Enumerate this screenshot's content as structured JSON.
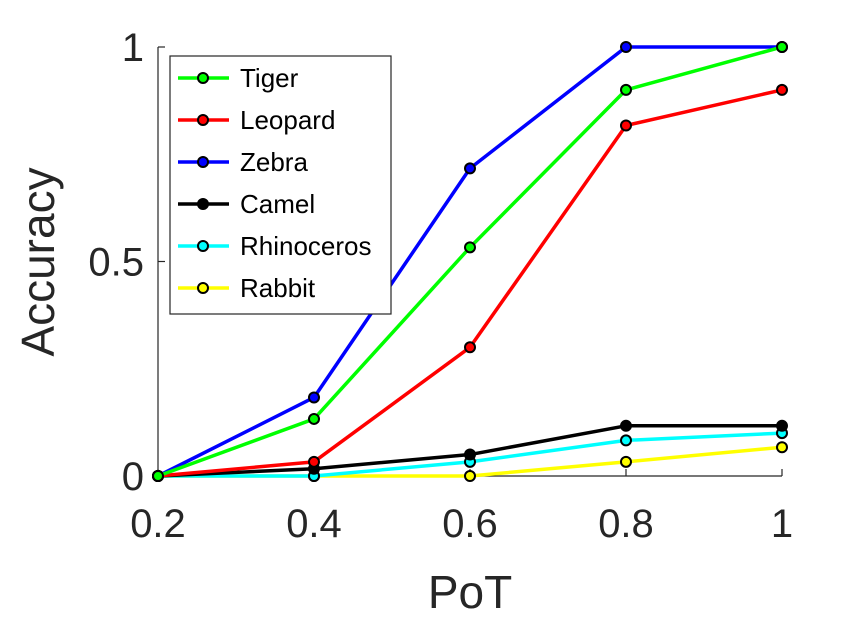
{
  "chart_data": {
    "type": "line",
    "title": "",
    "xlabel": "PoT",
    "ylabel": "Accuracy",
    "x": [
      0.2,
      0.4,
      0.6,
      0.8,
      1
    ],
    "x_tick_labels": [
      "0.2",
      "0.4",
      "0.6",
      "0.8",
      "1"
    ],
    "y_ticks": [
      0,
      0.5,
      1
    ],
    "y_tick_labels": [
      "0",
      "0.5",
      "1"
    ],
    "xlim": [
      0.2,
      1
    ],
    "ylim": [
      0,
      1
    ],
    "grid": false,
    "legend_position": "top-left",
    "series": [
      {
        "name": "Tiger",
        "color": "#00ff00",
        "values": [
          0,
          0.133,
          0.533,
          0.9,
          1
        ]
      },
      {
        "name": "Leopard",
        "color": "#ff0000",
        "values": [
          0,
          0.033,
          0.3,
          0.817,
          0.9
        ]
      },
      {
        "name": "Zebra",
        "color": "#0000ff",
        "values": [
          0,
          0.183,
          0.717,
          1,
          1
        ]
      },
      {
        "name": "Camel",
        "color": "#000000",
        "values": [
          0,
          0.017,
          0.05,
          0.117,
          0.117
        ]
      },
      {
        "name": "Rhinoceros",
        "color": "#00ffff",
        "values": [
          0,
          0,
          0.033,
          0.083,
          0.1
        ]
      },
      {
        "name": "Rabbit",
        "color": "#ffff00",
        "values": [
          0,
          0,
          0,
          0.033,
          0.067
        ]
      }
    ]
  }
}
